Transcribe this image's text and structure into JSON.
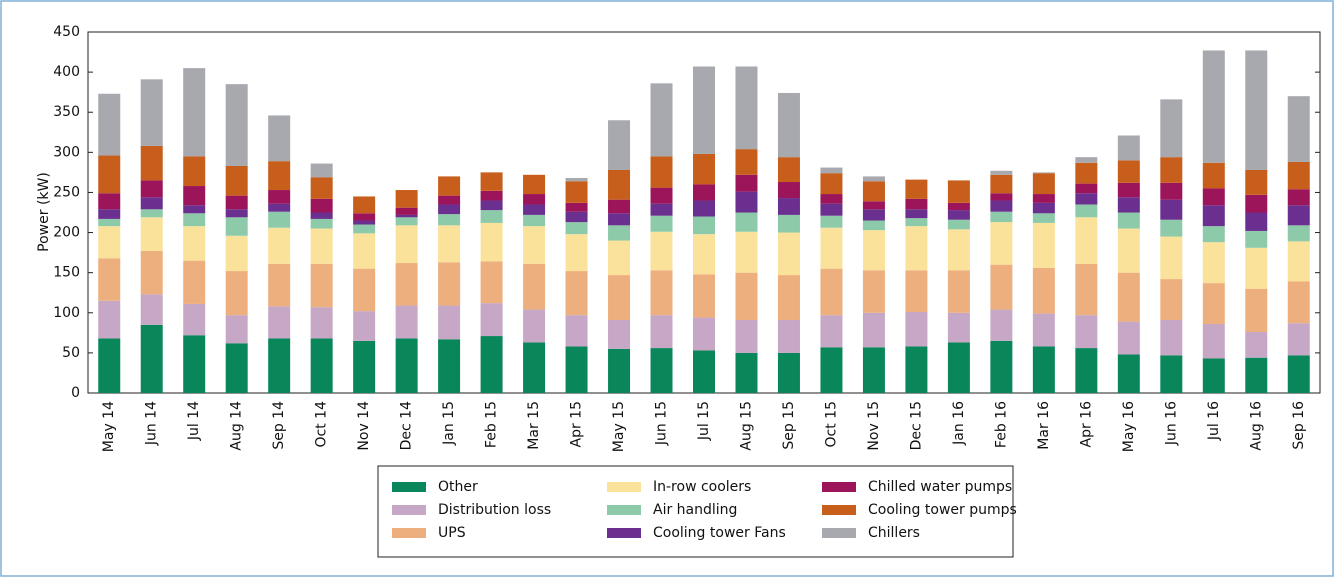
{
  "chart_data": {
    "type": "stacked_bar",
    "y_label": "Power (kW)",
    "categories": [
      "May 14",
      "Jun 14",
      "Jul 14",
      "Aug 14",
      "Sep 14",
      "Oct 14",
      "Nov 14",
      "Dec 14",
      "Jan 15",
      "Feb 15",
      "Mar 15",
      "Apr 15",
      "May 15",
      "Jun 15",
      "Jul 15",
      "Aug 15",
      "Sep 15",
      "Oct 15",
      "Nov 15",
      "Dec 15",
      "Jan 16",
      "Feb 16",
      "Mar 16",
      "Apr 16",
      "May 16",
      "Jun 16",
      "Jul 16",
      "Aug 16",
      "Sep 16"
    ],
    "ylim": [
      0,
      450
    ],
    "yticks": [
      0,
      50,
      100,
      150,
      200,
      250,
      300,
      350,
      400,
      450
    ],
    "grid": false,
    "series": [
      {
        "name": "Other",
        "color": "#0a875a",
        "values": [
          68,
          85,
          72,
          62,
          68,
          68,
          65,
          68,
          67,
          71,
          63,
          58,
          55,
          56,
          53,
          50,
          50,
          57,
          57,
          58,
          63,
          65,
          58,
          56,
          48,
          47,
          43,
          44,
          47
        ]
      },
      {
        "name": "Distribution loss",
        "color": "#c6a8c6",
        "values": [
          47,
          38,
          39,
          35,
          40,
          39,
          37,
          41,
          42,
          41,
          41,
          39,
          36,
          41,
          41,
          41,
          41,
          40,
          43,
          43,
          37,
          39,
          41,
          41,
          41,
          44,
          43,
          32,
          40
        ]
      },
      {
        "name": "UPS",
        "color": "#eeaf7e",
        "values": [
          53,
          54,
          54,
          55,
          53,
          54,
          53,
          53,
          54,
          52,
          57,
          55,
          56,
          56,
          54,
          59,
          56,
          58,
          53,
          52,
          53,
          56,
          57,
          64,
          61,
          51,
          51,
          54,
          52
        ]
      },
      {
        "name": "In-row coolers",
        "color": "#fbe29a",
        "values": [
          40,
          42,
          43,
          44,
          45,
          44,
          44,
          47,
          46,
          48,
          47,
          46,
          43,
          48,
          50,
          51,
          53,
          51,
          50,
          55,
          51,
          53,
          56,
          58,
          55,
          53,
          51,
          51,
          50
        ]
      },
      {
        "name": "Air handling",
        "color": "#8dcaa9",
        "values": [
          9,
          10,
          16,
          23,
          20,
          12,
          11,
          10,
          14,
          16,
          14,
          15,
          19,
          20,
          22,
          24,
          22,
          15,
          12,
          10,
          12,
          13,
          12,
          16,
          20,
          21,
          20,
          21,
          20
        ]
      },
      {
        "name": "Cooling tower Fans",
        "color": "#6b2f8f",
        "values": [
          12,
          15,
          10,
          10,
          10,
          8,
          5,
          3,
          12,
          12,
          13,
          13,
          15,
          15,
          20,
          26,
          21,
          15,
          14,
          11,
          12,
          14,
          13,
          14,
          19,
          25,
          26,
          23,
          25
        ]
      },
      {
        "name": "Chilled water pumps",
        "color": "#9c1459",
        "values": [
          20,
          21,
          24,
          17,
          17,
          17,
          9,
          9,
          11,
          12,
          13,
          11,
          17,
          20,
          20,
          21,
          20,
          12,
          10,
          13,
          9,
          9,
          11,
          12,
          18,
          21,
          21,
          22,
          20
        ]
      },
      {
        "name": "Cooling tower pumps",
        "color": "#c75e1c",
        "values": [
          47,
          43,
          37,
          37,
          36,
          27,
          21,
          22,
          24,
          23,
          24,
          27,
          37,
          39,
          38,
          32,
          31,
          26,
          25,
          24,
          28,
          23,
          26,
          26,
          28,
          32,
          32,
          31,
          34
        ]
      },
      {
        "name": "Chillers",
        "color": "#a7a9af",
        "values": [
          77,
          83,
          110,
          102,
          57,
          17,
          0,
          0,
          0,
          0,
          0,
          4,
          62,
          91,
          109,
          103,
          80,
          7,
          6,
          0,
          0,
          5,
          1,
          7,
          31,
          72,
          140,
          149,
          82
        ]
      }
    ]
  }
}
